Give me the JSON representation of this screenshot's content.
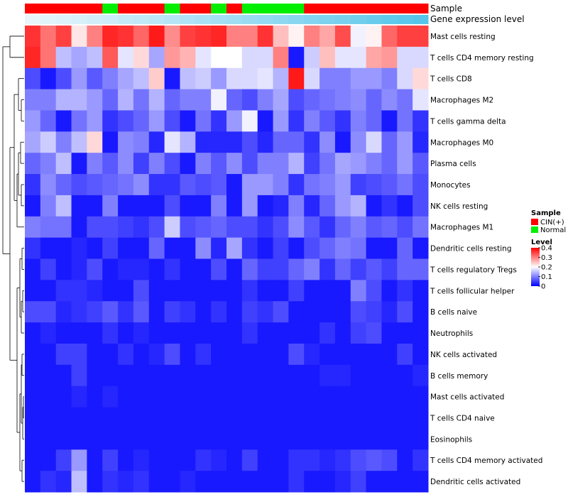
{
  "chart_data": {
    "type": "heatmap",
    "title": "",
    "annotation_tracks": [
      {
        "name": "Sample",
        "label": "Sample"
      },
      {
        "name": "Gene expression level",
        "label": "Gene expression level"
      }
    ],
    "sample_groups": [
      "C",
      "C",
      "C",
      "C",
      "C",
      "N",
      "C",
      "C",
      "C",
      "N",
      "C",
      "C",
      "N",
      "C",
      "N",
      "N",
      "N",
      "N",
      "C",
      "C",
      "C",
      "C",
      "C",
      "C",
      "C",
      "C"
    ],
    "expression_level": [
      0.1,
      0.12,
      0.14,
      0.16,
      0.18,
      0.2,
      0.22,
      0.24,
      0.26,
      0.28,
      0.3,
      0.32,
      0.34,
      0.36,
      0.38,
      0.4,
      0.42,
      0.44,
      0.46,
      0.48,
      0.5,
      0.52,
      0.55,
      0.58,
      0.6,
      0.62
    ],
    "rows": [
      "Mast cells resting",
      "T cells CD4 memory resting",
      "T cells CD8",
      "Macrophages M2",
      "T cells gamma delta",
      "Macrophages M0",
      "Plasma cells",
      "Monocytes",
      "NK cells resting",
      "Macrophages M1",
      "Dendritic cells resting",
      "T cells regulatory  Tregs",
      "T cells follicular helper",
      "B cells naive",
      "Neutrophils",
      "NK cells activated",
      "B cells memory",
      "Mast cells activated",
      "T cells CD4 naive",
      "Eosinophils",
      "T cells CD4 memory activated",
      "Dendritic cells activated"
    ],
    "values": [
      [
        0.36,
        0.31,
        0.35,
        0.22,
        0.3,
        0.37,
        0.36,
        0.32,
        0.38,
        0.29,
        0.35,
        0.36,
        0.37,
        0.3,
        0.3,
        0.36,
        0.25,
        0.21,
        0.3,
        0.27,
        0.34,
        0.19,
        0.21,
        0.32,
        0.35,
        0.35
      ],
      [
        0.37,
        0.31,
        0.15,
        0.13,
        0.15,
        0.33,
        0.18,
        0.23,
        0.13,
        0.28,
        0.26,
        0.18,
        0.2,
        0.2,
        0.17,
        0.17,
        0.3,
        0.02,
        0.16,
        0.25,
        0.18,
        0.18,
        0.27,
        0.28,
        0.17,
        0.17
      ],
      [
        0.06,
        0.02,
        0.06,
        0.12,
        0.07,
        0.1,
        0.13,
        0.15,
        0.24,
        0.02,
        0.15,
        0.16,
        0.12,
        0.17,
        0.17,
        0.18,
        0.14,
        0.38,
        0.17,
        0.1,
        0.1,
        0.12,
        0.12,
        0.1,
        0.17,
        0.23
      ],
      [
        0.1,
        0.1,
        0.14,
        0.14,
        0.12,
        0.08,
        0.14,
        0.09,
        0.14,
        0.08,
        0.1,
        0.1,
        0.19,
        0.08,
        0.06,
        0.1,
        0.13,
        0.06,
        0.08,
        0.09,
        0.1,
        0.11,
        0.08,
        0.11,
        0.09,
        0.18
      ],
      [
        0.12,
        0.08,
        0.02,
        0.09,
        0.12,
        0.04,
        0.06,
        0.08,
        0.12,
        0.06,
        0.02,
        0.09,
        0.04,
        0.12,
        0.19,
        0.02,
        0.12,
        0.04,
        0.1,
        0.07,
        0.04,
        0.1,
        0.08,
        0.02,
        0.09,
        0.04
      ],
      [
        0.13,
        0.16,
        0.1,
        0.15,
        0.23,
        0.02,
        0.11,
        0.1,
        0.03,
        0.18,
        0.14,
        0.03,
        0.03,
        0.03,
        0.06,
        0.03,
        0.08,
        0.08,
        0.04,
        0.11,
        0.02,
        0.11,
        0.17,
        0.08,
        0.12,
        0.03
      ],
      [
        0.08,
        0.1,
        0.15,
        0.02,
        0.1,
        0.07,
        0.11,
        0.05,
        0.1,
        0.06,
        0.02,
        0.1,
        0.07,
        0.11,
        0.06,
        0.1,
        0.1,
        0.14,
        0.05,
        0.09,
        0.13,
        0.12,
        0.1,
        0.08,
        0.12,
        0.07
      ],
      [
        0.04,
        0.11,
        0.08,
        0.06,
        0.07,
        0.08,
        0.09,
        0.11,
        0.04,
        0.04,
        0.07,
        0.06,
        0.07,
        0.02,
        0.12,
        0.12,
        0.1,
        0.04,
        0.09,
        0.1,
        0.12,
        0.05,
        0.06,
        0.07,
        0.09,
        0.06
      ],
      [
        0.02,
        0.1,
        0.15,
        0.02,
        0.02,
        0.1,
        0.02,
        0.02,
        0.02,
        0.06,
        0.02,
        0.02,
        0.1,
        0.02,
        0.12,
        0.02,
        0.03,
        0.1,
        0.03,
        0.08,
        0.12,
        0.14,
        0.02,
        0.04,
        0.02,
        0.06
      ],
      [
        0.1,
        0.09,
        0.09,
        0.02,
        0.06,
        0.06,
        0.05,
        0.04,
        0.06,
        0.16,
        0.06,
        0.07,
        0.08,
        0.06,
        0.06,
        0.04,
        0.06,
        0.11,
        0.07,
        0.04,
        0.08,
        0.1,
        0.07,
        0.08,
        0.06,
        0.09
      ],
      [
        0.04,
        0.02,
        0.02,
        0.03,
        0.02,
        0.05,
        0.02,
        0.02,
        0.08,
        0.02,
        0.02,
        0.11,
        0.03,
        0.13,
        0.04,
        0.02,
        0.05,
        0.02,
        0.06,
        0.08,
        0.1,
        0.09,
        0.02,
        0.02,
        0.08,
        0.02
      ],
      [
        0.02,
        0.05,
        0.02,
        0.03,
        0.06,
        0.02,
        0.03,
        0.03,
        0.02,
        0.04,
        0.02,
        0.02,
        0.06,
        0.02,
        0.08,
        0.05,
        0.05,
        0.08,
        0.1,
        0.04,
        0.08,
        0.05,
        0.07,
        0.05,
        0.08,
        0.08
      ],
      [
        0.02,
        0.02,
        0.04,
        0.04,
        0.03,
        0.02,
        0.02,
        0.06,
        0.02,
        0.02,
        0.02,
        0.02,
        0.02,
        0.02,
        0.04,
        0.02,
        0.02,
        0.05,
        0.02,
        0.02,
        0.02,
        0.1,
        0.06,
        0.02,
        0.04,
        0.02
      ],
      [
        0.06,
        0.06,
        0.03,
        0.04,
        0.05,
        0.07,
        0.04,
        0.07,
        0.02,
        0.05,
        0.04,
        0.02,
        0.04,
        0.02,
        0.05,
        0.04,
        0.06,
        0.02,
        0.02,
        0.02,
        0.02,
        0.06,
        0.05,
        0.03,
        0.06,
        0.02
      ],
      [
        0.02,
        0.03,
        0.02,
        0.02,
        0.02,
        0.04,
        0.02,
        0.03,
        0.02,
        0.02,
        0.02,
        0.02,
        0.02,
        0.02,
        0.04,
        0.02,
        0.02,
        0.02,
        0.02,
        0.04,
        0.02,
        0.05,
        0.06,
        0.02,
        0.02,
        0.02
      ],
      [
        0.02,
        0.02,
        0.05,
        0.05,
        0.02,
        0.02,
        0.04,
        0.02,
        0.03,
        0.06,
        0.02,
        0.04,
        0.02,
        0.02,
        0.02,
        0.02,
        0.02,
        0.06,
        0.03,
        0.02,
        0.02,
        0.02,
        0.02,
        0.02,
        0.05,
        0.02
      ],
      [
        0.02,
        0.02,
        0.02,
        0.05,
        0.02,
        0.02,
        0.02,
        0.02,
        0.02,
        0.02,
        0.02,
        0.02,
        0.02,
        0.02,
        0.02,
        0.02,
        0.02,
        0.02,
        0.02,
        0.03,
        0.03,
        0.02,
        0.02,
        0.02,
        0.02,
        0.03
      ],
      [
        0.02,
        0.02,
        0.02,
        0.03,
        0.02,
        0.03,
        0.02,
        0.02,
        0.02,
        0.02,
        0.02,
        0.02,
        0.02,
        0.02,
        0.02,
        0.02,
        0.02,
        0.02,
        0.02,
        0.02,
        0.02,
        0.02,
        0.02,
        0.02,
        0.02,
        0.02
      ],
      [
        0.02,
        0.02,
        0.02,
        0.02,
        0.02,
        0.02,
        0.02,
        0.02,
        0.02,
        0.02,
        0.02,
        0.02,
        0.02,
        0.02,
        0.02,
        0.02,
        0.02,
        0.02,
        0.02,
        0.02,
        0.02,
        0.02,
        0.02,
        0.02,
        0.02,
        0.02
      ],
      [
        0.02,
        0.02,
        0.02,
        0.02,
        0.02,
        0.02,
        0.02,
        0.02,
        0.02,
        0.02,
        0.02,
        0.02,
        0.02,
        0.02,
        0.02,
        0.02,
        0.02,
        0.02,
        0.02,
        0.02,
        0.02,
        0.02,
        0.02,
        0.02,
        0.02,
        0.02
      ],
      [
        0.02,
        0.02,
        0.05,
        0.12,
        0.02,
        0.05,
        0.02,
        0.03,
        0.02,
        0.02,
        0.02,
        0.04,
        0.03,
        0.02,
        0.05,
        0.02,
        0.02,
        0.04,
        0.04,
        0.03,
        0.04,
        0.06,
        0.07,
        0.06,
        0.02,
        0.04
      ],
      [
        0.02,
        0.04,
        0.03,
        0.15,
        0.02,
        0.04,
        0.03,
        0.04,
        0.02,
        0.02,
        0.03,
        0.02,
        0.02,
        0.02,
        0.02,
        0.02,
        0.02,
        0.04,
        0.02,
        0.02,
        0.03,
        0.05,
        0.02,
        0.02,
        0.02,
        0.02
      ]
    ],
    "color_scale": {
      "min": 0,
      "mid": 0.2,
      "max": 0.4,
      "low_color": "#0000FF",
      "mid_color": "#FFFFFF",
      "high_color": "#FF0000"
    },
    "sample_legend": {
      "title": "Sample",
      "items": [
        {
          "code": "C",
          "label": "CIN(+)",
          "color": "#FF0000"
        },
        {
          "code": "N",
          "label": "Normal",
          "color": "#00EE00"
        }
      ]
    },
    "level_legend": {
      "title": "Level",
      "ticks": [
        0.4,
        0.3,
        0.2,
        0.1,
        0
      ],
      "tick_labels": [
        "0.4",
        "0.3",
        "0.2",
        "0.1",
        "0"
      ]
    },
    "expression_color_low": "#E8F6FC",
    "expression_color_high": "#56C5EA"
  }
}
